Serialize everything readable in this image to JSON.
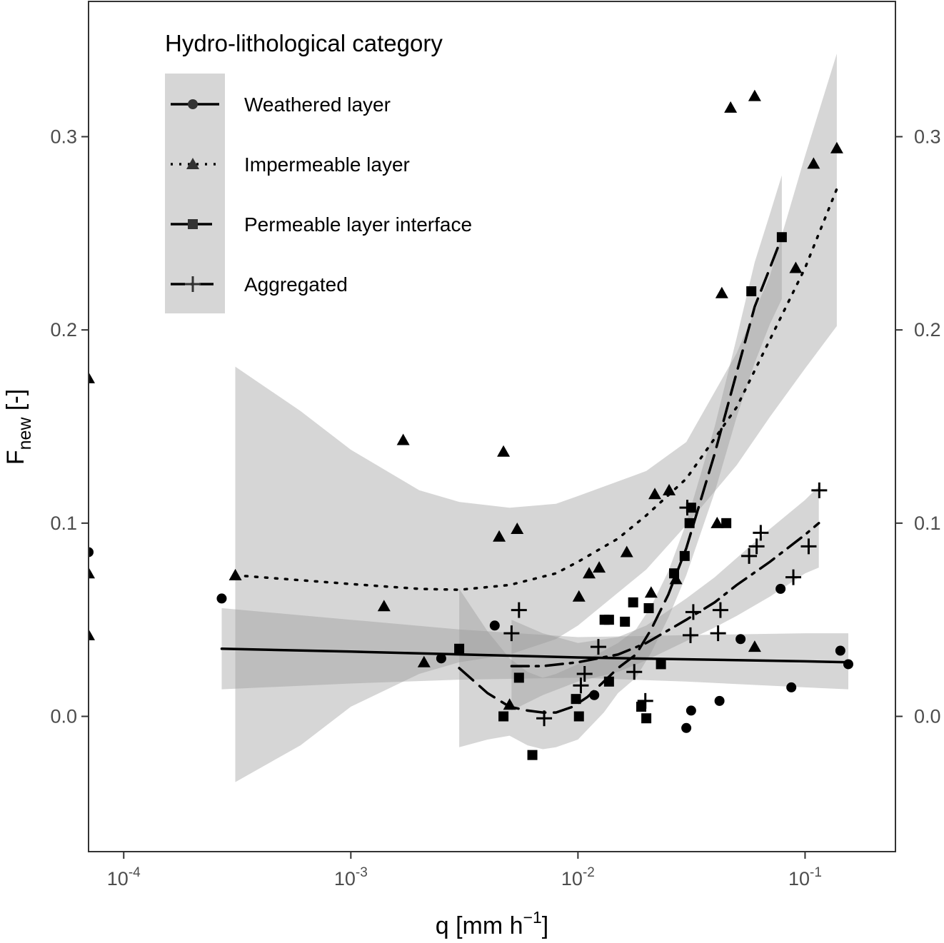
{
  "chart_data": {
    "type": "scatter",
    "xscale": "log10",
    "xlim": [
      7e-05,
      0.25
    ],
    "ylim": [
      -0.07,
      0.37
    ],
    "grid": false,
    "x_ticks": [
      {
        "value": 0.0001,
        "base": "10",
        "exp": "-4"
      },
      {
        "value": 0.001,
        "base": "10",
        "exp": "-3"
      },
      {
        "value": 0.01,
        "base": "10",
        "exp": "-2"
      },
      {
        "value": 0.1,
        "base": "10",
        "exp": "-1"
      }
    ],
    "y_ticks": [
      {
        "value": 0.0,
        "label": "0.0"
      },
      {
        "value": 0.1,
        "label": "0.1"
      },
      {
        "value": 0.2,
        "label": "0.2"
      },
      {
        "value": 0.3,
        "label": "0.3"
      }
    ],
    "xlabel": {
      "main": "q [mm h",
      "sup": "−1",
      "end": "]"
    },
    "ylabel": {
      "main": "F",
      "sub": "new",
      "end": " [-]"
    },
    "legend": {
      "title": "Hydro-lithological category",
      "position": "top-left"
    },
    "series": [
      {
        "name": "Weathered layer",
        "marker": "circle",
        "line": "solid",
        "color": "#000000",
        "points": [
          [
            7e-05,
            0.085
          ],
          [
            0.00027,
            0.061
          ],
          [
            0.0025,
            0.03
          ],
          [
            0.0043,
            0.047
          ],
          [
            0.0118,
            0.011
          ],
          [
            0.03,
            -0.006
          ],
          [
            0.0315,
            0.003
          ],
          [
            0.042,
            0.008
          ],
          [
            0.052,
            0.04
          ],
          [
            0.078,
            0.066
          ],
          [
            0.087,
            0.015
          ],
          [
            0.143,
            0.034
          ],
          [
            0.155,
            0.027
          ]
        ],
        "fit": [
          [
            0.00027,
            0.035
          ],
          [
            0.001,
            0.0335
          ],
          [
            0.01,
            0.0305
          ],
          [
            0.1,
            0.0285
          ],
          [
            0.155,
            0.028
          ]
        ],
        "band": [
          [
            0.00027,
            0.014,
            0.056
          ],
          [
            0.001,
            0.017,
            0.05
          ],
          [
            0.003,
            0.019,
            0.045
          ],
          [
            0.01,
            0.02,
            0.041
          ],
          [
            0.03,
            0.018,
            0.042
          ],
          [
            0.1,
            0.015,
            0.043
          ],
          [
            0.155,
            0.014,
            0.043
          ]
        ]
      },
      {
        "name": "Impermeable layer",
        "marker": "triangle",
        "line": "dotted",
        "color": "#000000",
        "points": [
          [
            7e-05,
            0.175
          ],
          [
            7e-05,
            0.074
          ],
          [
            7e-05,
            0.042
          ],
          [
            0.00031,
            0.073
          ],
          [
            0.0014,
            0.057
          ],
          [
            0.0017,
            0.143
          ],
          [
            0.0021,
            0.028
          ],
          [
            0.0045,
            0.093
          ],
          [
            0.0047,
            0.137
          ],
          [
            0.005,
            0.006
          ],
          [
            0.0054,
            0.097
          ],
          [
            0.0101,
            0.062
          ],
          [
            0.0112,
            0.074
          ],
          [
            0.0124,
            0.077
          ],
          [
            0.0164,
            0.085
          ],
          [
            0.021,
            0.064
          ],
          [
            0.0218,
            0.115
          ],
          [
            0.0252,
            0.117
          ],
          [
            0.027,
            0.071
          ],
          [
            0.041,
            0.1
          ],
          [
            0.043,
            0.219
          ],
          [
            0.047,
            0.315
          ],
          [
            0.06,
            0.036
          ],
          [
            0.06,
            0.321
          ],
          [
            0.091,
            0.232
          ],
          [
            0.109,
            0.286
          ],
          [
            0.138,
            0.294
          ]
        ],
        "fit": [
          [
            0.00031,
            0.073
          ],
          [
            0.001,
            0.0685
          ],
          [
            0.002,
            0.066
          ],
          [
            0.003,
            0.0655
          ],
          [
            0.005,
            0.068
          ],
          [
            0.008,
            0.074
          ],
          [
            0.01,
            0.08
          ],
          [
            0.015,
            0.092
          ],
          [
            0.02,
            0.104
          ],
          [
            0.03,
            0.123
          ],
          [
            0.05,
            0.16
          ],
          [
            0.07,
            0.195
          ],
          [
            0.1,
            0.232
          ],
          [
            0.138,
            0.273
          ]
        ],
        "band": [
          [
            0.00031,
            0.181,
            -0.034
          ],
          [
            0.0006,
            0.158,
            -0.015
          ],
          [
            0.001,
            0.138,
            0.005
          ],
          [
            0.002,
            0.117,
            0.022
          ],
          [
            0.003,
            0.111,
            0.028
          ],
          [
            0.005,
            0.108,
            0.032
          ],
          [
            0.008,
            0.11,
            0.04
          ],
          [
            0.01,
            0.114,
            0.047
          ],
          [
            0.02,
            0.127,
            0.076
          ],
          [
            0.03,
            0.142,
            0.099
          ],
          [
            0.05,
            0.188,
            0.13
          ],
          [
            0.07,
            0.228,
            0.155
          ],
          [
            0.1,
            0.29,
            0.18
          ],
          [
            0.138,
            0.343,
            0.202
          ]
        ]
      },
      {
        "name": "Permeable layer interface",
        "marker": "square",
        "line": "dashed",
        "color": "#000000",
        "points": [
          [
            0.003,
            0.035
          ],
          [
            0.0047,
            0.0
          ],
          [
            0.0055,
            0.02
          ],
          [
            0.0063,
            -0.02
          ],
          [
            0.0098,
            0.009
          ],
          [
            0.0101,
            0.0
          ],
          [
            0.0131,
            0.05
          ],
          [
            0.0137,
            0.05
          ],
          [
            0.0137,
            0.018
          ],
          [
            0.0161,
            0.049
          ],
          [
            0.0175,
            0.059
          ],
          [
            0.019,
            0.005
          ],
          [
            0.02,
            -0.001
          ],
          [
            0.0205,
            0.056
          ],
          [
            0.0232,
            0.027
          ],
          [
            0.0265,
            0.074
          ],
          [
            0.0295,
            0.083
          ],
          [
            0.031,
            0.1
          ],
          [
            0.0315,
            0.108
          ],
          [
            0.045,
            0.1
          ],
          [
            0.058,
            0.22
          ],
          [
            0.079,
            0.248
          ]
        ],
        "fit": [
          [
            0.003,
            0.025
          ],
          [
            0.004,
            0.012
          ],
          [
            0.005,
            0.005
          ],
          [
            0.006,
            0.003
          ],
          [
            0.007,
            0.002
          ],
          [
            0.008,
            0.002
          ],
          [
            0.0095,
            0.005
          ],
          [
            0.011,
            0.01
          ],
          [
            0.013,
            0.018
          ],
          [
            0.015,
            0.025
          ],
          [
            0.018,
            0.032
          ],
          [
            0.021,
            0.045
          ],
          [
            0.025,
            0.063
          ],
          [
            0.03,
            0.087
          ],
          [
            0.04,
            0.136
          ],
          [
            0.05,
            0.178
          ],
          [
            0.06,
            0.212
          ],
          [
            0.07,
            0.232
          ],
          [
            0.079,
            0.248
          ]
        ],
        "band": [
          [
            0.003,
            0.066,
            -0.016
          ],
          [
            0.004,
            0.044,
            -0.012
          ],
          [
            0.005,
            0.03,
            -0.01
          ],
          [
            0.006,
            0.023,
            -0.015
          ],
          [
            0.007,
            0.02,
            -0.017
          ],
          [
            0.008,
            0.022,
            -0.016
          ],
          [
            0.01,
            0.027,
            -0.012
          ],
          [
            0.013,
            0.034,
            0.002
          ],
          [
            0.015,
            0.038,
            0.012
          ],
          [
            0.018,
            0.045,
            0.02
          ],
          [
            0.021,
            0.057,
            0.033
          ],
          [
            0.025,
            0.075,
            0.051
          ],
          [
            0.03,
            0.1,
            0.073
          ],
          [
            0.04,
            0.15,
            0.116
          ],
          [
            0.05,
            0.196,
            0.155
          ],
          [
            0.06,
            0.235,
            0.183
          ],
          [
            0.07,
            0.26,
            0.203
          ],
          [
            0.079,
            0.28,
            0.216
          ]
        ]
      },
      {
        "name": "Aggregated",
        "marker": "plus",
        "line": "dashdot",
        "color": "#000000",
        "points": [
          [
            0.0051,
            0.043
          ],
          [
            0.0055,
            0.055
          ],
          [
            0.0071,
            -0.001
          ],
          [
            0.0103,
            0.016
          ],
          [
            0.0107,
            0.022
          ],
          [
            0.0123,
            0.036
          ],
          [
            0.0177,
            0.023
          ],
          [
            0.0198,
            0.008
          ],
          [
            0.0303,
            0.108
          ],
          [
            0.0313,
            0.042
          ],
          [
            0.0322,
            0.054
          ],
          [
            0.0414,
            0.043
          ],
          [
            0.0424,
            0.055
          ],
          [
            0.0567,
            0.083
          ],
          [
            0.0612,
            0.088
          ],
          [
            0.0638,
            0.095
          ],
          [
            0.0888,
            0.072
          ],
          [
            0.1037,
            0.088
          ],
          [
            0.1155,
            0.117
          ]
        ],
        "fit": [
          [
            0.0051,
            0.026
          ],
          [
            0.007,
            0.026
          ],
          [
            0.01,
            0.028
          ],
          [
            0.015,
            0.032
          ],
          [
            0.02,
            0.038
          ],
          [
            0.03,
            0.05
          ],
          [
            0.04,
            0.059
          ],
          [
            0.05,
            0.068
          ],
          [
            0.07,
            0.08
          ],
          [
            0.1,
            0.094
          ],
          [
            0.115,
            0.1
          ]
        ],
        "band": [
          [
            0.0051,
            0.05,
            0.003
          ],
          [
            0.007,
            0.043,
            0.011
          ],
          [
            0.01,
            0.038,
            0.018
          ],
          [
            0.015,
            0.041,
            0.023
          ],
          [
            0.02,
            0.047,
            0.029
          ],
          [
            0.03,
            0.061,
            0.039
          ],
          [
            0.04,
            0.072,
            0.046
          ],
          [
            0.05,
            0.082,
            0.052
          ],
          [
            0.07,
            0.097,
            0.062
          ],
          [
            0.1,
            0.112,
            0.074
          ],
          [
            0.115,
            0.119,
            0.077
          ]
        ]
      }
    ]
  }
}
